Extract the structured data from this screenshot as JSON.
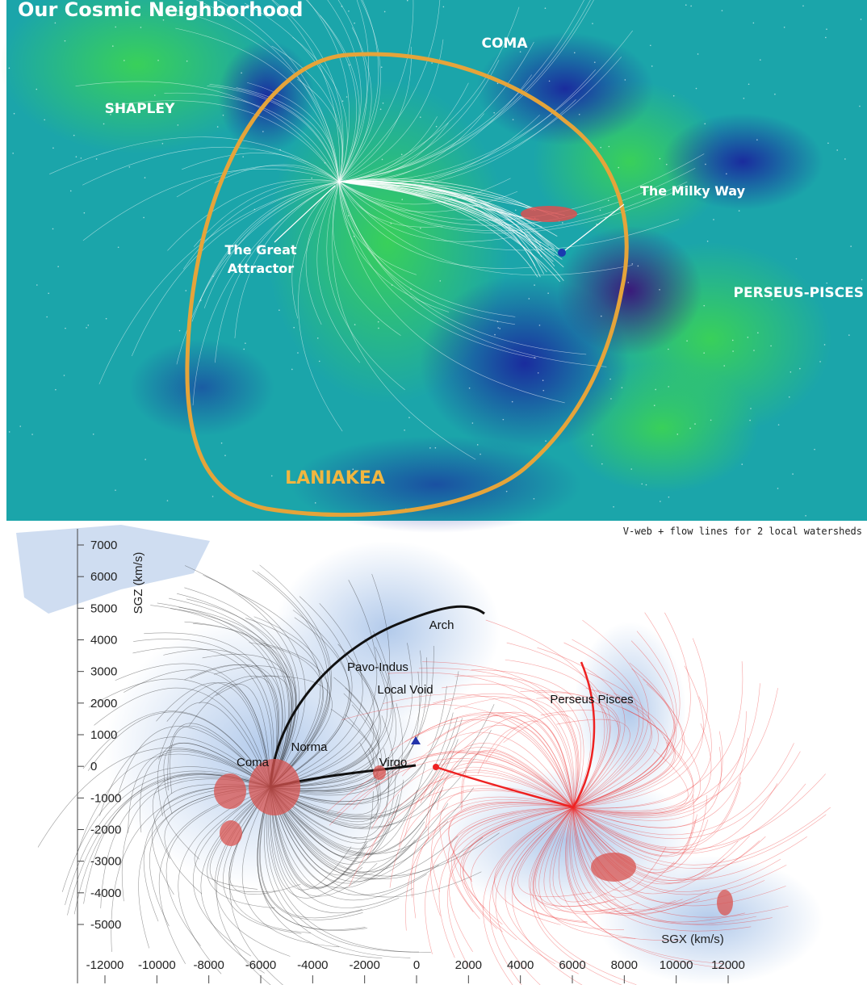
{
  "top_panel": {
    "title": "Our Cosmic Neighborhood",
    "labels": [
      "COMA",
      "SHAPLEY",
      "The Milky Way",
      "The Great",
      "Attractor",
      "PERSEUS-PISCES",
      "LANIAKEA"
    ]
  },
  "bottom_panel": {
    "caption": "V-web + flow lines for 2 local watersheds",
    "y_axis": {
      "label": "SGZ (km/s)",
      "lim": [
        -5000,
        7000
      ],
      "ticks": [
        7000,
        6000,
        5000,
        4000,
        3000,
        2000,
        1000,
        0,
        -1000,
        -2000,
        -3000,
        -4000,
        -5000
      ]
    },
    "x_axis": {
      "label": "SGX (km/s)",
      "lim": [
        -12000,
        12000
      ],
      "ticks": [
        -12000,
        -10000,
        -8000,
        -6000,
        -4000,
        -2000,
        0,
        2000,
        4000,
        6000,
        8000,
        10000,
        12000
      ]
    },
    "annotations": [
      "Arch",
      "Pavo-Indus",
      "Local Void",
      "Norma",
      "Coma",
      "Virgo",
      "Perseus Pisces"
    ]
  }
}
